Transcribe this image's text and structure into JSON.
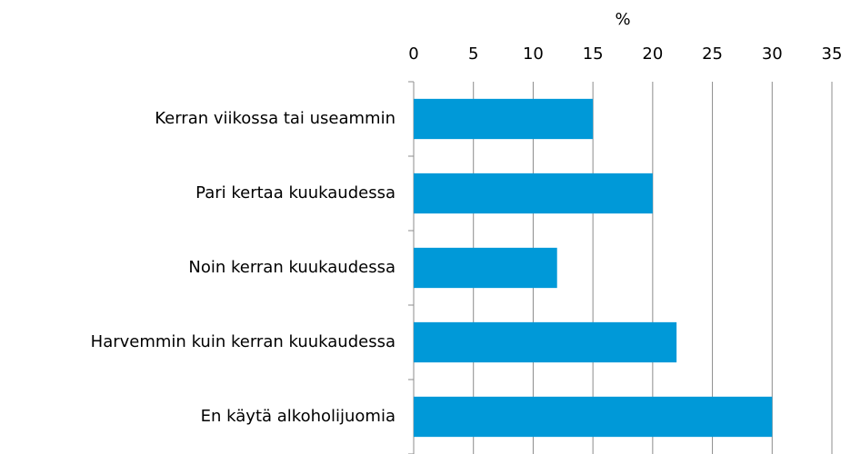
{
  "chart_data": {
    "type": "bar",
    "orientation": "horizontal",
    "xlabel": "%",
    "categories": [
      "Kerran viikossa tai useammin",
      "Pari kertaa kuukaudessa",
      "Noin kerran kuukaudessa",
      "Harvemmin kuin kerran kuukaudessa",
      "En käytä alkoholijuomia"
    ],
    "values": [
      15,
      20,
      12,
      22,
      30
    ],
    "color": "#0099d8",
    "xlim": [
      0,
      35
    ],
    "xticks": [
      0,
      5,
      10,
      15,
      20,
      25,
      30,
      35
    ],
    "grid": true
  }
}
